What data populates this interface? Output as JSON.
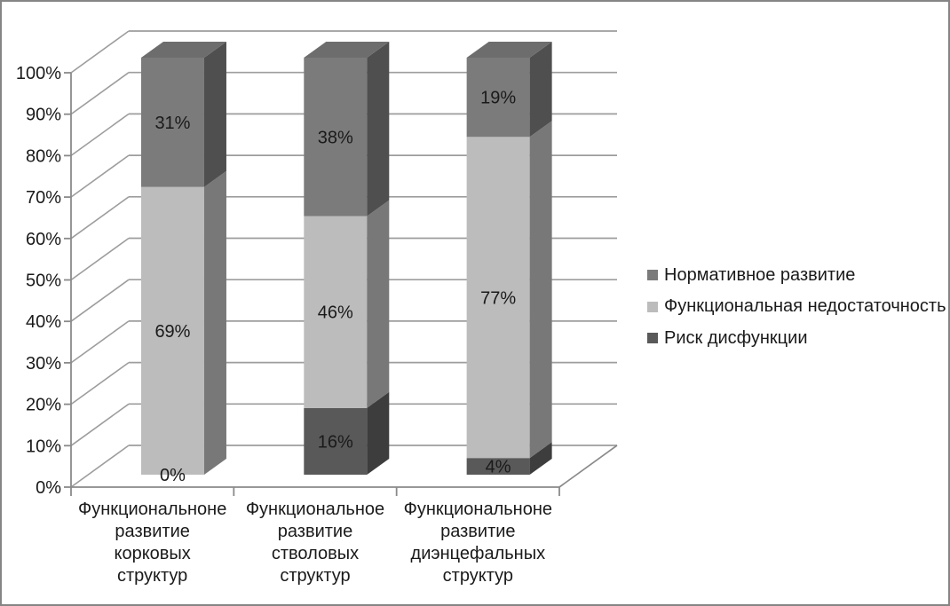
{
  "colors": {
    "background": "#ffffff",
    "border": "#858585",
    "gridline": "#9d9d9d",
    "axis": "#8a8a8a",
    "text": "#1a1a1a"
  },
  "chart_data": {
    "type": "bar",
    "subtype": "stacked-100-3d",
    "title": "",
    "xlabel": "",
    "ylabel": "",
    "grid": true,
    "categories": [
      "Функциональноне развитие корковых структур",
      "Функциональное развитие стволовых структур",
      "Функциональноне развитие диэнцефальных структур"
    ],
    "stack_order": "bottom-to-top",
    "series": [
      {
        "name": "Риск дисфункции",
        "values": [
          0,
          16,
          4
        ],
        "color": "#595959",
        "side_color": "#3d3d3d",
        "top_color": "#4a4a4a"
      },
      {
        "name": "Функциональная недостаточность",
        "values": [
          69,
          46,
          77
        ],
        "color": "#bcbcbc",
        "side_color": "#787878",
        "top_color": "#a8a8a8"
      },
      {
        "name": "Нормативное развитие",
        "values": [
          31,
          38,
          19
        ],
        "color": "#7b7b7b",
        "side_color": "#4f4f4f",
        "top_color": "#6d6d6d"
      }
    ],
    "value_labels": [
      [
        "0%",
        "69%",
        "31%"
      ],
      [
        "16%",
        "46%",
        "38%"
      ],
      [
        "4%",
        "77%",
        "19%"
      ]
    ],
    "y_axis": {
      "min": 0,
      "max": 100,
      "step": 10,
      "tick_labels": [
        "0%",
        "10%",
        "20%",
        "30%",
        "40%",
        "50%",
        "60%",
        "70%",
        "80%",
        "90%",
        "100%"
      ]
    },
    "legend": {
      "position": "right",
      "items": [
        "Нормативное развитие",
        "Функциональная недостаточность",
        "Риск дисфункции"
      ]
    }
  }
}
